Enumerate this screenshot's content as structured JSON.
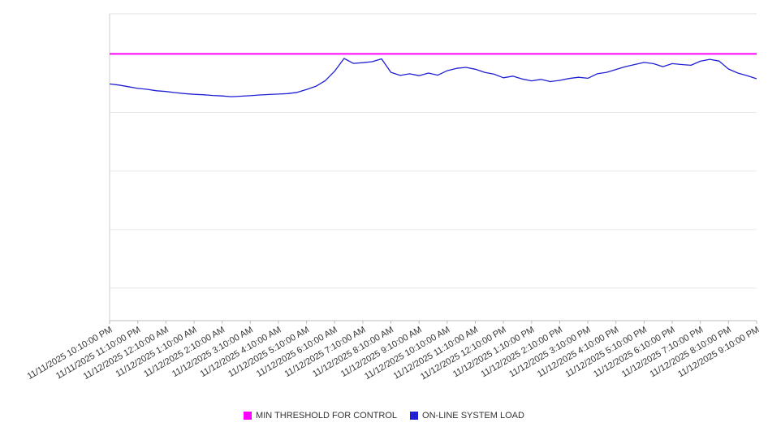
{
  "chart_data": {
    "type": "line",
    "title": "",
    "xlabel": "",
    "ylabel": "",
    "ylim": [
      0,
      130
    ],
    "grid": true,
    "legend_position": "bottom",
    "gridline_values": [
      113,
      88.2,
      63.4,
      38.6,
      13.8
    ],
    "points_per_label": 3,
    "x_tick_labels": [
      "11/11/2025 10:10:00 PM",
      "11/11/2025 11:10:00 PM",
      "11/12/2025 12:10:00 AM",
      "11/12/2025 1:10:00 AM",
      "11/12/2025 2:10:00 AM",
      "11/12/2025 3:10:00 AM",
      "11/12/2025 4:10:00 AM",
      "11/12/2025 5:10:00 AM",
      "11/12/2025 6:10:00 AM",
      "11/12/2025 7:10:00 AM",
      "11/12/2025 8:10:00 AM",
      "11/12/2025 9:10:00 AM",
      "11/12/2025 10:10:00 AM",
      "11/12/2025 11:10:00 AM",
      "11/12/2025 12:10:00 PM",
      "11/12/2025 1:10:00 PM",
      "11/12/2025 2:10:00 PM",
      "11/12/2025 3:10:00 PM",
      "11/12/2025 4:10:00 PM",
      "11/12/2025 5:10:00 PM",
      "11/12/2025 6:10:00 PM",
      "11/12/2025 7:10:00 PM",
      "11/12/2025 8:10:00 PM",
      "11/12/2025 9:10:00 PM"
    ],
    "series": [
      {
        "name": "MIN THRESHOLD FOR CONTROL",
        "type": "threshold",
        "color": "#ff00ff",
        "value": 113
      },
      {
        "name": "ON-LINE SYSTEM LOAD",
        "type": "line",
        "color": "#1f1fd3",
        "values": [
          100.3,
          99.8,
          99.1,
          98.4,
          98.0,
          97.4,
          97.1,
          96.6,
          96.2,
          95.9,
          95.7,
          95.4,
          95.2,
          94.9,
          95.1,
          95.3,
          95.6,
          95.8,
          96.0,
          96.2,
          96.7,
          97.9,
          99.3,
          101.7,
          105.7,
          111.1,
          109.0,
          109.3,
          109.7,
          110.9,
          105.2,
          103.9,
          104.6,
          103.8,
          104.9,
          104.0,
          105.9,
          106.9,
          107.3,
          106.5,
          105.2,
          104.4,
          102.9,
          103.6,
          102.4,
          101.6,
          102.2,
          101.3,
          101.8,
          102.6,
          103.1,
          102.7,
          104.6,
          105.2,
          106.4,
          107.6,
          108.5,
          109.4,
          108.9,
          107.6,
          108.9,
          108.5,
          108.2,
          109.9,
          110.7,
          110.0,
          106.6,
          104.9,
          103.8,
          102.5
        ]
      }
    ]
  }
}
